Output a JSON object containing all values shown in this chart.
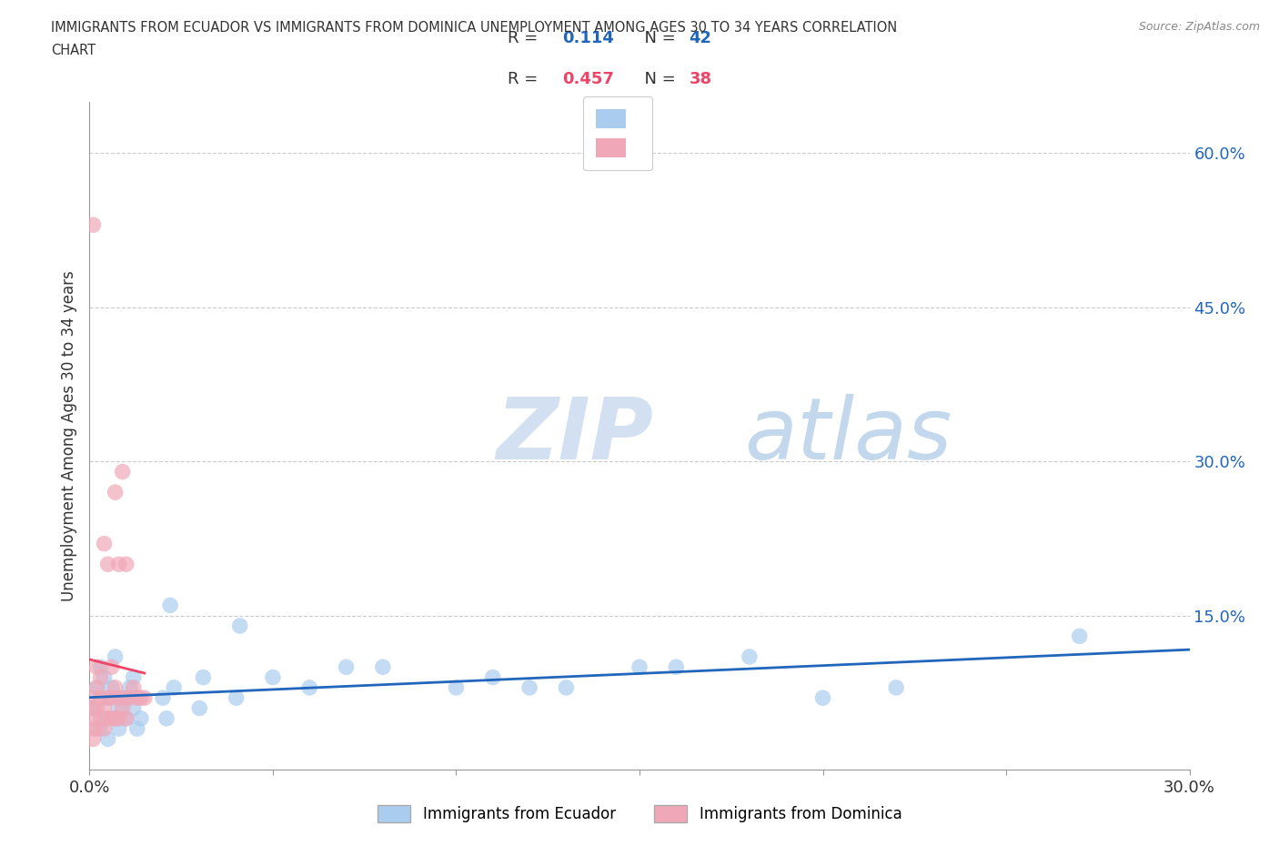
{
  "title_line1": "IMMIGRANTS FROM ECUADOR VS IMMIGRANTS FROM DOMINICA UNEMPLOYMENT AMONG AGES 30 TO 34 YEARS CORRELATION",
  "title_line2": "CHART",
  "source_text": "Source: ZipAtlas.com",
  "ylabel": "Unemployment Among Ages 30 to 34 years",
  "xlim": [
    0.0,
    0.3
  ],
  "ylim": [
    0.0,
    0.65
  ],
  "x_ticks": [
    0.0,
    0.05,
    0.1,
    0.15,
    0.2,
    0.25,
    0.3
  ],
  "y_ticks": [
    0.0,
    0.15,
    0.3,
    0.45,
    0.6
  ],
  "y_tick_labels": [
    "",
    "15.0%",
    "30.0%",
    "45.0%",
    "60.0%"
  ],
  "ecuador_color": "#aaccee",
  "dominica_color": "#f0a8b8",
  "ecuador_R": 0.114,
  "ecuador_N": 42,
  "dominica_R": 0.457,
  "dominica_N": 38,
  "ecuador_line_color": "#2266bb",
  "dominica_line_color": "#ee4466",
  "background_color": "#ffffff",
  "grid_color": "#cccccc",
  "ecuador_x": [
    0.001,
    0.002,
    0.003,
    0.003,
    0.004,
    0.004,
    0.005,
    0.005,
    0.006,
    0.007,
    0.007,
    0.008,
    0.008,
    0.009,
    0.01,
    0.011,
    0.012,
    0.012,
    0.013,
    0.014,
    0.02,
    0.021,
    0.022,
    0.023,
    0.03,
    0.031,
    0.04,
    0.041,
    0.05,
    0.06,
    0.07,
    0.08,
    0.1,
    0.11,
    0.12,
    0.13,
    0.15,
    0.16,
    0.18,
    0.2,
    0.22,
    0.27
  ],
  "ecuador_y": [
    0.06,
    0.08,
    0.04,
    0.1,
    0.05,
    0.09,
    0.03,
    0.07,
    0.08,
    0.05,
    0.11,
    0.04,
    0.06,
    0.07,
    0.05,
    0.08,
    0.06,
    0.09,
    0.04,
    0.05,
    0.07,
    0.05,
    0.16,
    0.08,
    0.06,
    0.09,
    0.07,
    0.14,
    0.09,
    0.08,
    0.1,
    0.1,
    0.08,
    0.09,
    0.08,
    0.08,
    0.1,
    0.1,
    0.11,
    0.07,
    0.08,
    0.13
  ],
  "dominica_x": [
    0.001,
    0.001,
    0.001,
    0.001,
    0.001,
    0.002,
    0.002,
    0.002,
    0.002,
    0.003,
    0.003,
    0.003,
    0.004,
    0.004,
    0.004,
    0.005,
    0.005,
    0.005,
    0.006,
    0.006,
    0.006,
    0.007,
    0.007,
    0.007,
    0.008,
    0.008,
    0.008,
    0.009,
    0.009,
    0.01,
    0.01,
    0.01,
    0.011,
    0.012,
    0.013,
    0.014,
    0.015,
    0.001
  ],
  "dominica_y": [
    0.04,
    0.05,
    0.06,
    0.07,
    0.53,
    0.04,
    0.06,
    0.08,
    0.1,
    0.05,
    0.07,
    0.09,
    0.04,
    0.06,
    0.22,
    0.05,
    0.07,
    0.2,
    0.05,
    0.07,
    0.1,
    0.05,
    0.27,
    0.08,
    0.05,
    0.07,
    0.2,
    0.06,
    0.29,
    0.05,
    0.07,
    0.2,
    0.07,
    0.08,
    0.07,
    0.07,
    0.07,
    0.03
  ],
  "legend_r_color": "#2266bb",
  "legend_n_color": "#ee4466"
}
